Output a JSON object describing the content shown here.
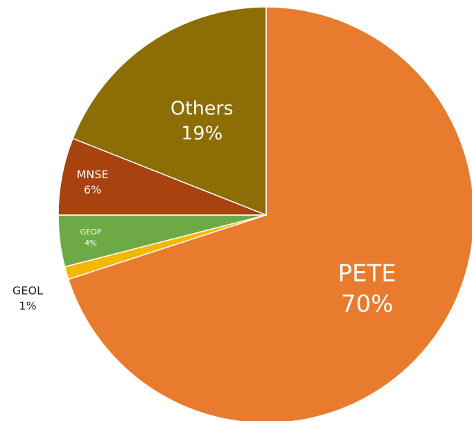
{
  "chart_data": {
    "type": "pie",
    "title": "",
    "start_angle_deg": 0,
    "direction": "clockwise",
    "slices": [
      {
        "label": "PETE",
        "value": 70,
        "display": "70%",
        "color": "#E87B2E"
      },
      {
        "label": "GEOL",
        "value": 1,
        "display": "1%",
        "color": "#F5B800"
      },
      {
        "label": "GEOP",
        "value": 4,
        "display": "4%",
        "color": "#6DAA45"
      },
      {
        "label": "MNSE",
        "value": 6,
        "display": "6%",
        "color": "#A8420F"
      },
      {
        "label": "Others",
        "value": 19,
        "display": "19%",
        "color": "#8C6D06"
      }
    ]
  }
}
